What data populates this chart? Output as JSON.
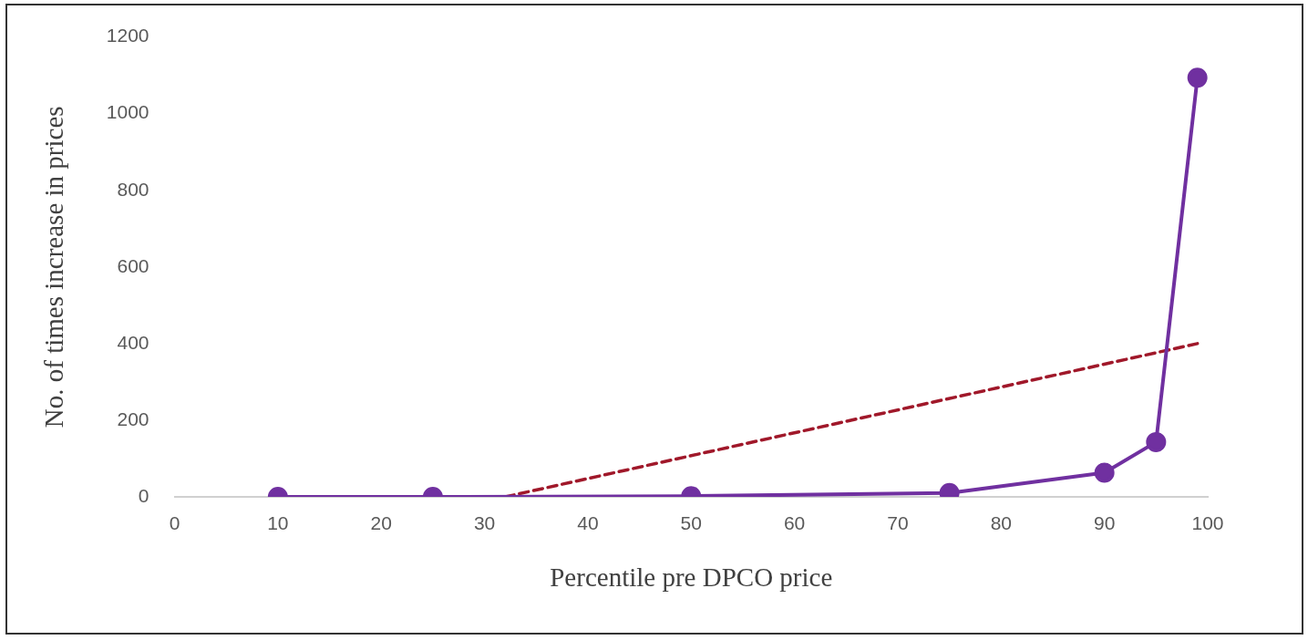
{
  "chart_data": {
    "type": "line",
    "xlabel": "Percentile pre DPCO price",
    "ylabel": "No. of times increase in prices",
    "xlim": [
      0,
      100
    ],
    "xticks": [
      0,
      10,
      20,
      30,
      40,
      50,
      60,
      70,
      80,
      90,
      100
    ],
    "ylim": [
      0,
      1200
    ],
    "yticks": [
      0,
      200,
      400,
      600,
      800,
      1000,
      1200
    ],
    "grid": false,
    "legend": false,
    "series": [
      {
        "color": "#7030a0",
        "marker": "circle",
        "line_style": "solid",
        "x": [
          10,
          25,
          50,
          75,
          90,
          95,
          99
        ],
        "values": [
          0,
          0,
          2,
          10,
          63,
          143,
          1094
        ]
      },
      {
        "color": "#a0182a",
        "marker": "none",
        "line_style": "dashed",
        "x": [
          32,
          99
        ],
        "values": [
          0,
          400
        ]
      }
    ]
  }
}
